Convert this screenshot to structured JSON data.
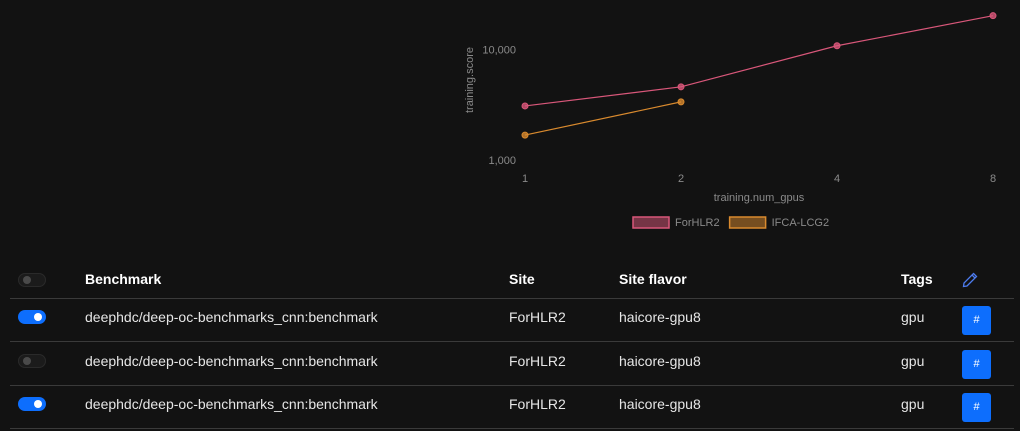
{
  "chart_data": {
    "type": "line",
    "log_x": true,
    "log_y": true,
    "grid": false,
    "x_label": "training.num_gpus",
    "y_label": "training.score",
    "x": [
      1,
      2,
      4,
      8
    ],
    "xlim": [
      1,
      8
    ],
    "xticks": [
      1,
      2,
      4,
      8
    ],
    "ylim": [
      830,
      22000
    ],
    "yticks": [
      {
        "value": 1000,
        "label": "1,000"
      },
      {
        "value": 10000,
        "label": "10,000"
      }
    ],
    "legend": "bottom",
    "series": [
      {
        "name": "ForHLR2",
        "color": "#d9577a",
        "values": [
          3160,
          4710,
          11100,
          20800
        ]
      },
      {
        "name": "IFCA-LCG2",
        "color": "#d98a2e",
        "values": [
          1720,
          3440,
          null,
          null
        ]
      }
    ]
  },
  "table": {
    "select_all": false,
    "columns": [
      "Benchmark",
      "Site",
      "Site flavor",
      "Tags"
    ],
    "rows": [
      {
        "enabled": true,
        "benchmark": "deephdc/deep-oc-benchmarks_cnn:benchmark",
        "site": "ForHLR2",
        "flavor": "haicore-gpu8",
        "tags": "gpu",
        "button": "#"
      },
      {
        "enabled": false,
        "benchmark": "deephdc/deep-oc-benchmarks_cnn:benchmark",
        "site": "ForHLR2",
        "flavor": "haicore-gpu8",
        "tags": "gpu",
        "button": "#"
      },
      {
        "enabled": true,
        "benchmark": "deephdc/deep-oc-benchmarks_cnn:benchmark",
        "site": "ForHLR2",
        "flavor": "haicore-gpu8",
        "tags": "gpu",
        "button": "#"
      }
    ]
  }
}
